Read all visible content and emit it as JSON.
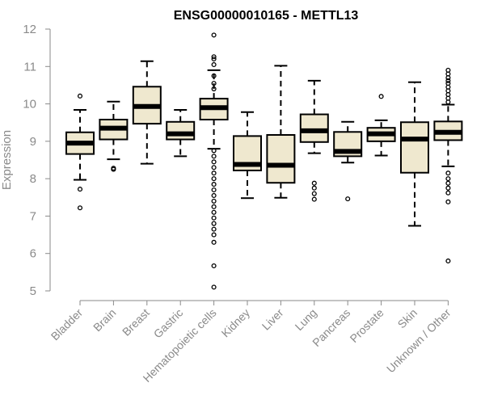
{
  "chart_data": {
    "type": "boxplot",
    "title": "ENSG00000010165 - METTL13",
    "xlabel": "",
    "ylabel": "Expression",
    "ylim": [
      5,
      12
    ],
    "yticks": [
      "5",
      "6",
      "7",
      "8",
      "9",
      "10",
      "11",
      "12"
    ],
    "box_fill": "#efe8cf",
    "box_stroke": "#000000",
    "categories": [
      "Bladder",
      "Brain",
      "Breast",
      "Gastric",
      "Hematopoietic cells",
      "Kidney",
      "Liver",
      "Lung",
      "Pancreas",
      "Prostate",
      "Skin",
      "Unknown / Other"
    ],
    "boxes": [
      {
        "name": "Bladder",
        "whisker_low": 7.97,
        "q1": 8.66,
        "median": 8.95,
        "q3": 9.24,
        "whisker_high": 9.84,
        "outliers": [
          10.21,
          7.72,
          7.22
        ]
      },
      {
        "name": "Brain",
        "whisker_low": 8.52,
        "q1": 9.05,
        "median": 9.35,
        "q3": 9.58,
        "whisker_high": 10.06,
        "outliers": [
          8.25,
          8.28
        ]
      },
      {
        "name": "Breast",
        "whisker_low": 8.4,
        "q1": 9.47,
        "median": 9.93,
        "q3": 10.46,
        "whisker_high": 11.14,
        "outliers": []
      },
      {
        "name": "Gastric",
        "whisker_low": 8.6,
        "q1": 9.05,
        "median": 9.2,
        "q3": 9.52,
        "whisker_high": 9.84,
        "outliers": []
      },
      {
        "name": "Hematopoietic cells",
        "whisker_low": 8.8,
        "q1": 9.58,
        "median": 9.9,
        "q3": 10.14,
        "whisker_high": 10.9,
        "outliers": [
          11.84,
          11.26,
          11.2,
          11.05,
          10.75,
          10.55,
          10.4,
          8.75,
          8.6,
          8.45,
          8.3,
          8.15,
          8.0,
          7.85,
          7.7,
          7.55,
          7.4,
          7.25,
          7.1,
          6.95,
          6.8,
          6.65,
          6.5,
          6.3,
          5.67,
          5.1
        ]
      },
      {
        "name": "Kidney",
        "whisker_low": 7.48,
        "q1": 8.22,
        "median": 8.38,
        "q3": 9.14,
        "whisker_high": 9.78,
        "outliers": []
      },
      {
        "name": "Liver",
        "whisker_low": 7.49,
        "q1": 7.89,
        "median": 8.36,
        "q3": 9.17,
        "whisker_high": 11.02,
        "outliers": []
      },
      {
        "name": "Lung",
        "whisker_low": 8.68,
        "q1": 8.98,
        "median": 9.28,
        "q3": 9.72,
        "whisker_high": 10.62,
        "outliers": [
          7.88,
          7.75,
          7.6,
          7.45
        ]
      },
      {
        "name": "Pancreas",
        "whisker_low": 8.43,
        "q1": 8.6,
        "median": 8.73,
        "q3": 9.25,
        "whisker_high": 9.52,
        "outliers": [
          7.46
        ]
      },
      {
        "name": "Prostate",
        "whisker_low": 8.62,
        "q1": 9.0,
        "median": 9.2,
        "q3": 9.36,
        "whisker_high": 9.56,
        "outliers": [
          10.2
        ]
      },
      {
        "name": "Skin",
        "whisker_low": 6.74,
        "q1": 8.16,
        "median": 9.06,
        "q3": 9.51,
        "whisker_high": 10.58,
        "outliers": []
      },
      {
        "name": "Unknown / Other",
        "whisker_low": 8.33,
        "q1": 9.03,
        "median": 9.24,
        "q3": 9.53,
        "whisker_high": 9.98,
        "outliers": [
          10.9,
          10.8,
          10.7,
          10.62,
          10.55,
          10.45,
          10.35,
          10.25,
          10.15,
          10.05,
          8.15,
          8.0,
          7.88,
          7.75,
          7.62,
          7.38,
          5.8
        ]
      }
    ]
  }
}
